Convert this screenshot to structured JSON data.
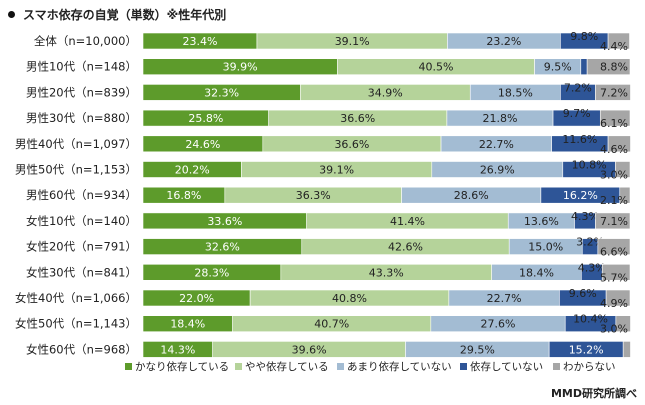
{
  "chart_data": {
    "type": "bar",
    "orientation": "horizontal",
    "stacked": true,
    "normalized_percent": true,
    "title": "スマホ依存の自覚（単数）※性年代別",
    "categories": [
      "全体（n=10,000）",
      "男性10代（n=148）",
      "男性20代（n=839）",
      "男性30代（n=880）",
      "男性40代（n=1,097）",
      "男性50代（n=1,153）",
      "男性60代（n=934）",
      "女性10代（n=140）",
      "女性20代（n=791）",
      "女性30代（n=841）",
      "女性40代（n=1,066）",
      "女性50代（n=1,143）",
      "女性60代（n=968）"
    ],
    "series": [
      {
        "name": "かなり依存している",
        "color": "#5d9b2b",
        "values": [
          23.4,
          39.9,
          32.3,
          25.8,
          24.6,
          20.2,
          16.8,
          33.6,
          32.6,
          28.3,
          22.0,
          18.4,
          14.3
        ]
      },
      {
        "name": "やや依存している",
        "color": "#b5d39a",
        "values": [
          39.1,
          40.5,
          34.9,
          36.6,
          36.6,
          39.1,
          36.3,
          41.4,
          42.6,
          43.3,
          40.8,
          40.7,
          39.6
        ]
      },
      {
        "name": "あまり依存していない",
        "color": "#a3bcd3",
        "values": [
          23.2,
          9.5,
          18.5,
          21.8,
          22.7,
          26.9,
          28.6,
          13.6,
          15.0,
          18.4,
          22.7,
          27.6,
          29.5
        ]
      },
      {
        "name": "依存していない",
        "color": "#2e5597",
        "values": [
          9.8,
          1.3,
          7.2,
          9.7,
          11.6,
          10.8,
          16.2,
          4.3,
          3.2,
          4.3,
          9.6,
          10.4,
          15.2
        ]
      },
      {
        "name": "わからない",
        "color": "#a6a6a6",
        "values": [
          4.4,
          8.8,
          7.2,
          6.1,
          4.6,
          3.0,
          2.1,
          7.1,
          6.6,
          5.7,
          4.9,
          3.0,
          1.5
        ]
      }
    ],
    "data_labels": [
      [
        "23.4%",
        "39.1%",
        "23.2%",
        "9.8%",
        "4.4%"
      ],
      [
        "39.9%",
        "40.5%",
        "9.5%",
        "",
        "8.8%"
      ],
      [
        "32.3%",
        "34.9%",
        "18.5%",
        "7.2%",
        "7.2%"
      ],
      [
        "25.8%",
        "36.6%",
        "21.8%",
        "9.7%",
        "6.1%"
      ],
      [
        "24.6%",
        "36.6%",
        "22.7%",
        "11.6%",
        "4.6%"
      ],
      [
        "20.2%",
        "39.1%",
        "26.9%",
        "10.8%",
        "3.0%"
      ],
      [
        "16.8%",
        "36.3%",
        "28.6%",
        "16.2%",
        "2.1%"
      ],
      [
        "33.6%",
        "41.4%",
        "13.6%",
        "4.3%",
        "7.1%"
      ],
      [
        "32.6%",
        "42.6%",
        "15.0%",
        "3.2%",
        "6.6%"
      ],
      [
        "28.3%",
        "43.3%",
        "18.4%",
        "4.3%",
        "5.7%"
      ],
      [
        "22.0%",
        "40.8%",
        "22.7%",
        "9.6%",
        "4.9%"
      ],
      [
        "18.4%",
        "40.7%",
        "27.6%",
        "10.4%",
        "3.0%"
      ],
      [
        "14.3%",
        "39.6%",
        "29.5%",
        "15.2%",
        ""
      ]
    ],
    "xlim": [
      0,
      100
    ],
    "grid": false,
    "legend_position": "bottom"
  },
  "credit": "MMD研究所調べ"
}
